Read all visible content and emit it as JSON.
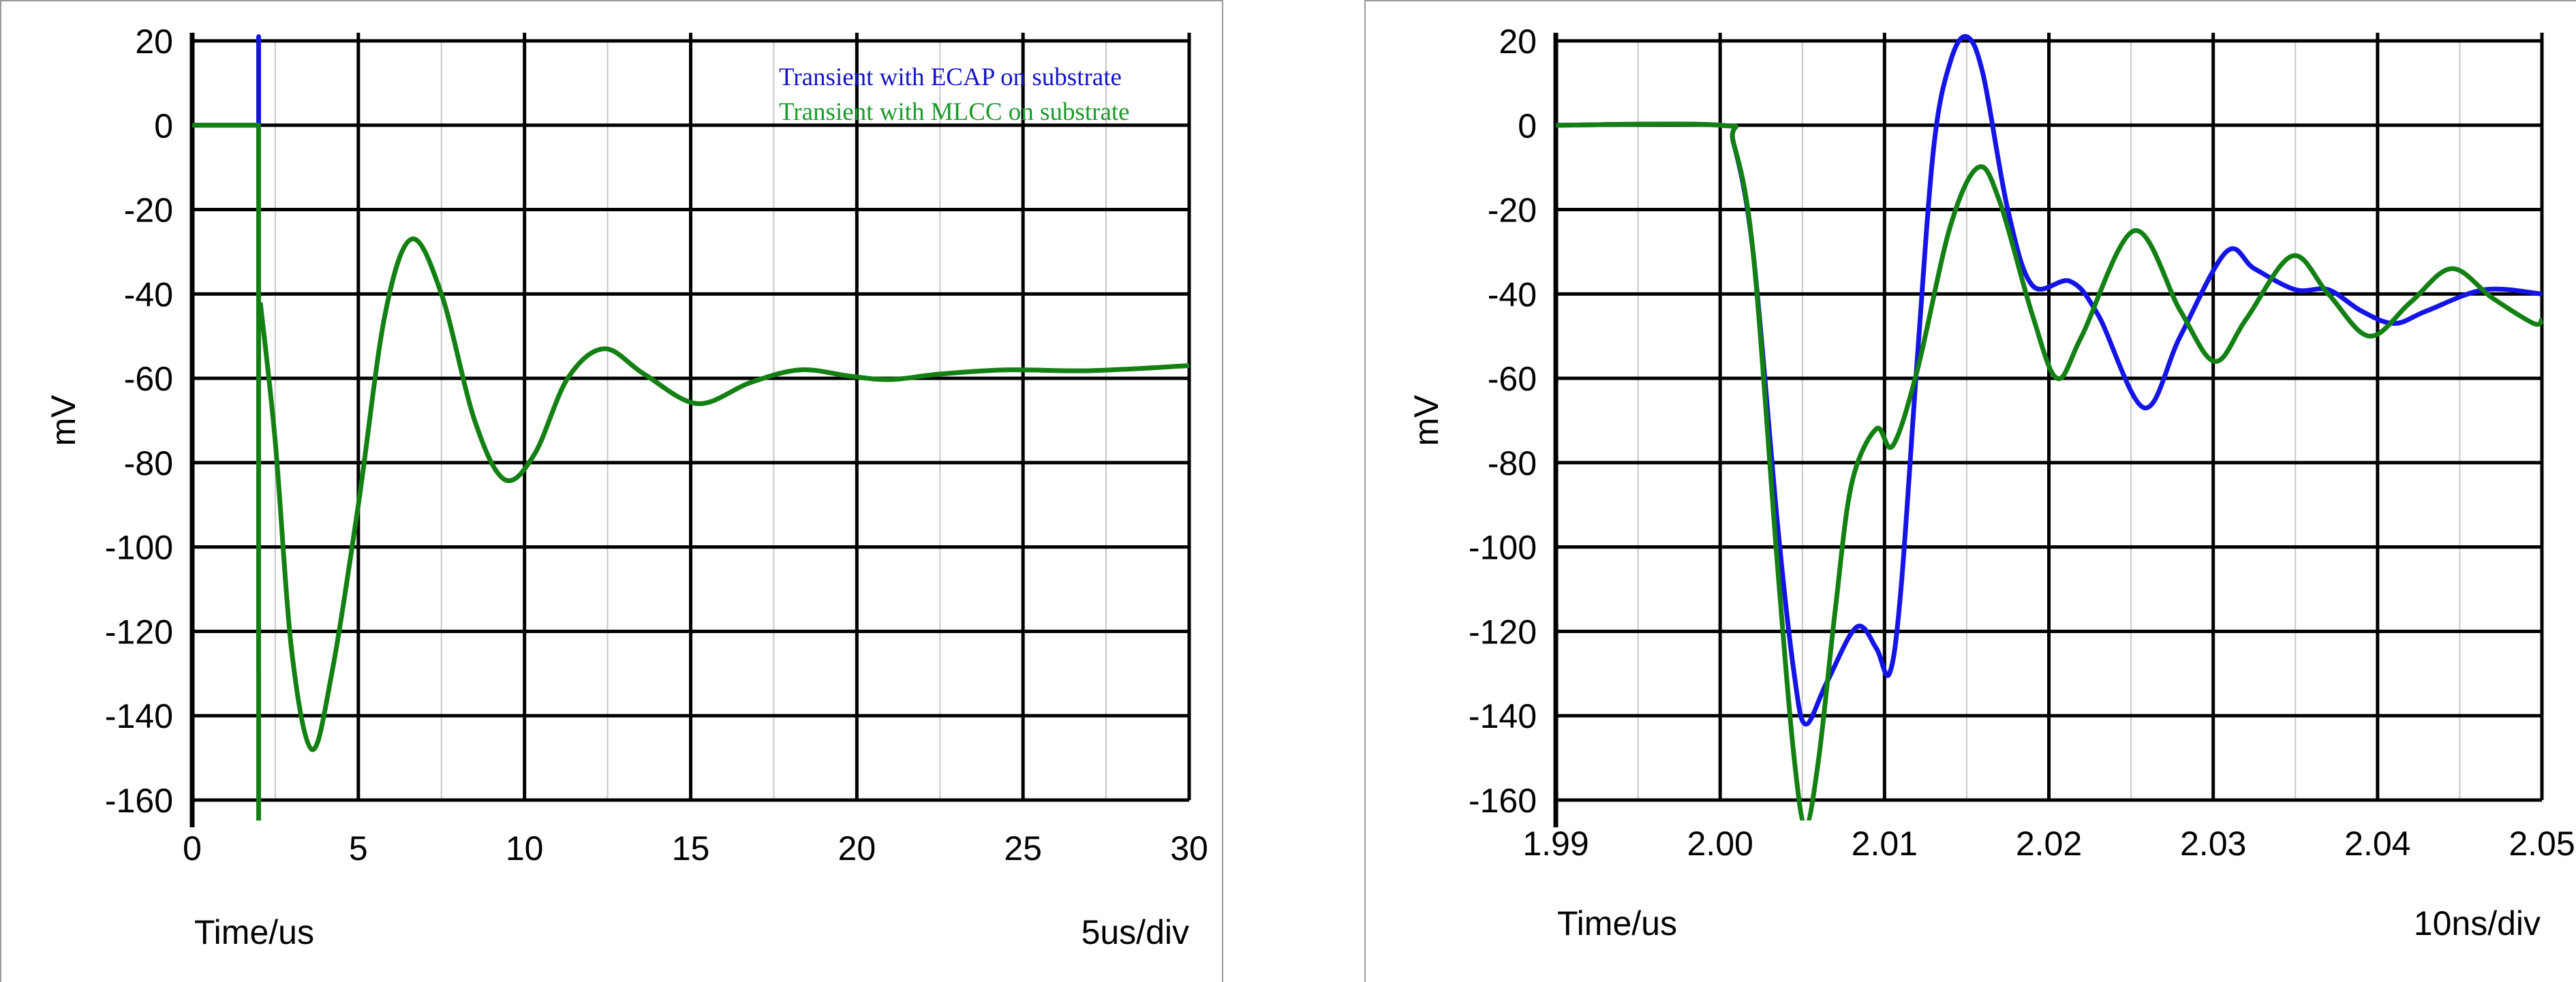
{
  "chart_data": [
    {
      "type": "line",
      "xlabel": "Time/us",
      "ylabel": "mV",
      "scale_note": "5us/div",
      "xlim": [
        0,
        30
      ],
      "ylim": [
        -160,
        20
      ],
      "xticks": [
        "0",
        "5",
        "10",
        "15",
        "20",
        "25",
        "30"
      ],
      "yticks": [
        "20",
        "0",
        "-20",
        "-40",
        "-60",
        "-80",
        "-100",
        "-120",
        "-140",
        "-160"
      ],
      "grid": true,
      "legend": "top-right",
      "series": [
        {
          "name": "Transient with ECAP on substrate",
          "color": "#1414e6",
          "segments": [
            {
              "smooth": false,
              "points": [
                [
                  0,
                  0
                ],
                [
                  2,
                  0
                ],
                [
                  2,
                  21
                ],
                [
                  2,
                  -130
                ]
              ]
            }
          ]
        },
        {
          "name": "Transient with MLCC on substrate",
          "color": "#138013",
          "segments": [
            {
              "smooth": false,
              "points": [
                [
                  0,
                  0
                ],
                [
                  2,
                  0
                ],
                [
                  2,
                  -170
                ],
                [
                  2,
                  -42
                ]
              ]
            },
            {
              "smooth": true,
              "points": [
                [
                  2.05,
                  -42
                ],
                [
                  2.5,
                  -75
                ],
                [
                  3,
                  -125
                ],
                [
                  3.6,
                  -148
                ],
                [
                  4.2,
                  -130
                ],
                [
                  5,
                  -90
                ],
                [
                  5.8,
                  -45
                ],
                [
                  6.6,
                  -27
                ],
                [
                  7.5,
                  -40
                ],
                [
                  8.5,
                  -70
                ],
                [
                  9.4,
                  -84
                ],
                [
                  10.3,
                  -78
                ],
                [
                  11.3,
                  -60
                ],
                [
                  12.4,
                  -53
                ],
                [
                  13.6,
                  -59
                ],
                [
                  15.2,
                  -66
                ],
                [
                  16.8,
                  -61
                ],
                [
                  18.3,
                  -58
                ],
                [
                  19.8,
                  -59.5
                ],
                [
                  21,
                  -60.3
                ],
                [
                  22.5,
                  -59
                ],
                [
                  24.5,
                  -58
                ],
                [
                  27,
                  -58.2
                ],
                [
                  30,
                  -57
                ]
              ]
            }
          ]
        }
      ]
    },
    {
      "type": "line",
      "xlabel": "Time/us",
      "ylabel": "mV",
      "scale_note": "10ns/div",
      "xlim": [
        1.99,
        2.05
      ],
      "ylim": [
        -160,
        20
      ],
      "xticks": [
        "1.99",
        "2.00",
        "2.01",
        "2.02",
        "2.03",
        "2.04",
        "2.05"
      ],
      "yticks": [
        "20",
        "0",
        "-20",
        "-40",
        "-60",
        "-80",
        "-100",
        "-120",
        "-140",
        "-160"
      ],
      "grid": true,
      "series": [
        {
          "color": "#1414e6",
          "segments": [
            {
              "smooth": true,
              "points": [
                [
                  1.99,
                  0
                ],
                [
                  2.0,
                  0
                ],
                [
                  2.0008,
                  -4
                ],
                [
                  2.002,
                  -30
                ],
                [
                  2.0035,
                  -95
                ],
                [
                  2.0045,
                  -130
                ],
                [
                  2.0052,
                  -142
                ],
                [
                  2.0065,
                  -132
                ],
                [
                  2.0083,
                  -119
                ],
                [
                  2.0095,
                  -124
                ],
                [
                  2.0103,
                  -130
                ],
                [
                  2.011,
                  -110
                ],
                [
                  2.012,
                  -55
                ],
                [
                  2.013,
                  -5
                ],
                [
                  2.014,
                  15
                ],
                [
                  2.015,
                  21
                ],
                [
                  2.016,
                  12
                ],
                [
                  2.0175,
                  -20
                ],
                [
                  2.019,
                  -38
                ],
                [
                  2.0213,
                  -37
                ],
                [
                  2.023,
                  -45
                ],
                [
                  2.0258,
                  -67
                ],
                [
                  2.028,
                  -50
                ],
                [
                  2.0308,
                  -30
                ],
                [
                  2.0325,
                  -34
                ],
                [
                  2.035,
                  -39
                ],
                [
                  2.037,
                  -39
                ],
                [
                  2.039,
                  -44
                ],
                [
                  2.041,
                  -47
                ],
                [
                  2.043,
                  -44
                ],
                [
                  2.0465,
                  -39
                ],
                [
                  2.05,
                  -40
                ]
              ]
            }
          ]
        },
        {
          "color": "#138013",
          "segments": [
            {
              "smooth": true,
              "points": [
                [
                  1.99,
                  0
                ],
                [
                  2.0,
                  0
                ],
                [
                  2.0008,
                  -4
                ],
                [
                  2.002,
                  -30
                ],
                [
                  2.0035,
                  -105
                ],
                [
                  2.0045,
                  -150
                ],
                [
                  2.0052,
                  -166
                ],
                [
                  2.006,
                  -150
                ],
                [
                  2.007,
                  -115
                ],
                [
                  2.008,
                  -85
                ],
                [
                  2.0095,
                  -72
                ],
                [
                  2.0105,
                  -76
                ],
                [
                  2.012,
                  -58
                ],
                [
                  2.014,
                  -24
                ],
                [
                  2.0157,
                  -10
                ],
                [
                  2.017,
                  -18
                ],
                [
                  2.019,
                  -45
                ],
                [
                  2.0205,
                  -60
                ],
                [
                  2.022,
                  -50
                ],
                [
                  2.0252,
                  -25
                ],
                [
                  2.028,
                  -44
                ],
                [
                  2.0301,
                  -56
                ],
                [
                  2.032,
                  -46
                ],
                [
                  2.0348,
                  -31
                ],
                [
                  2.037,
                  -40
                ],
                [
                  2.0395,
                  -50
                ],
                [
                  2.042,
                  -42
                ],
                [
                  2.0445,
                  -34
                ],
                [
                  2.047,
                  -41
                ],
                [
                  2.0495,
                  -47
                ],
                [
                  2.05,
                  -46
                ]
              ]
            }
          ]
        }
      ]
    }
  ]
}
